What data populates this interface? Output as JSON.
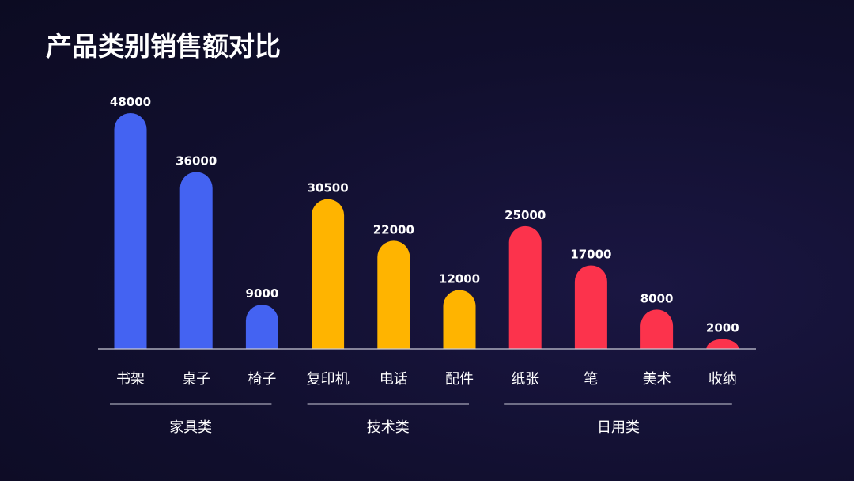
{
  "chart_data": {
    "type": "bar",
    "title": "产品类别销售额对比",
    "categories": [
      "书架",
      "桌子",
      "椅子",
      "复印机",
      "电话",
      "配件",
      "纸张",
      "笔",
      "美术",
      "收纳"
    ],
    "values": [
      48000,
      36000,
      9000,
      30500,
      22000,
      12000,
      25000,
      17000,
      8000,
      2000
    ],
    "groups": [
      {
        "name": "家具类",
        "start": 0,
        "end": 2,
        "color": "#4463f2"
      },
      {
        "name": "技术类",
        "start": 3,
        "end": 5,
        "color": "#ffb400"
      },
      {
        "name": "日用类",
        "start": 6,
        "end": 9,
        "color": "#fc334c"
      }
    ],
    "ylim": [
      0,
      48000
    ],
    "grid": false,
    "legend": "none"
  }
}
